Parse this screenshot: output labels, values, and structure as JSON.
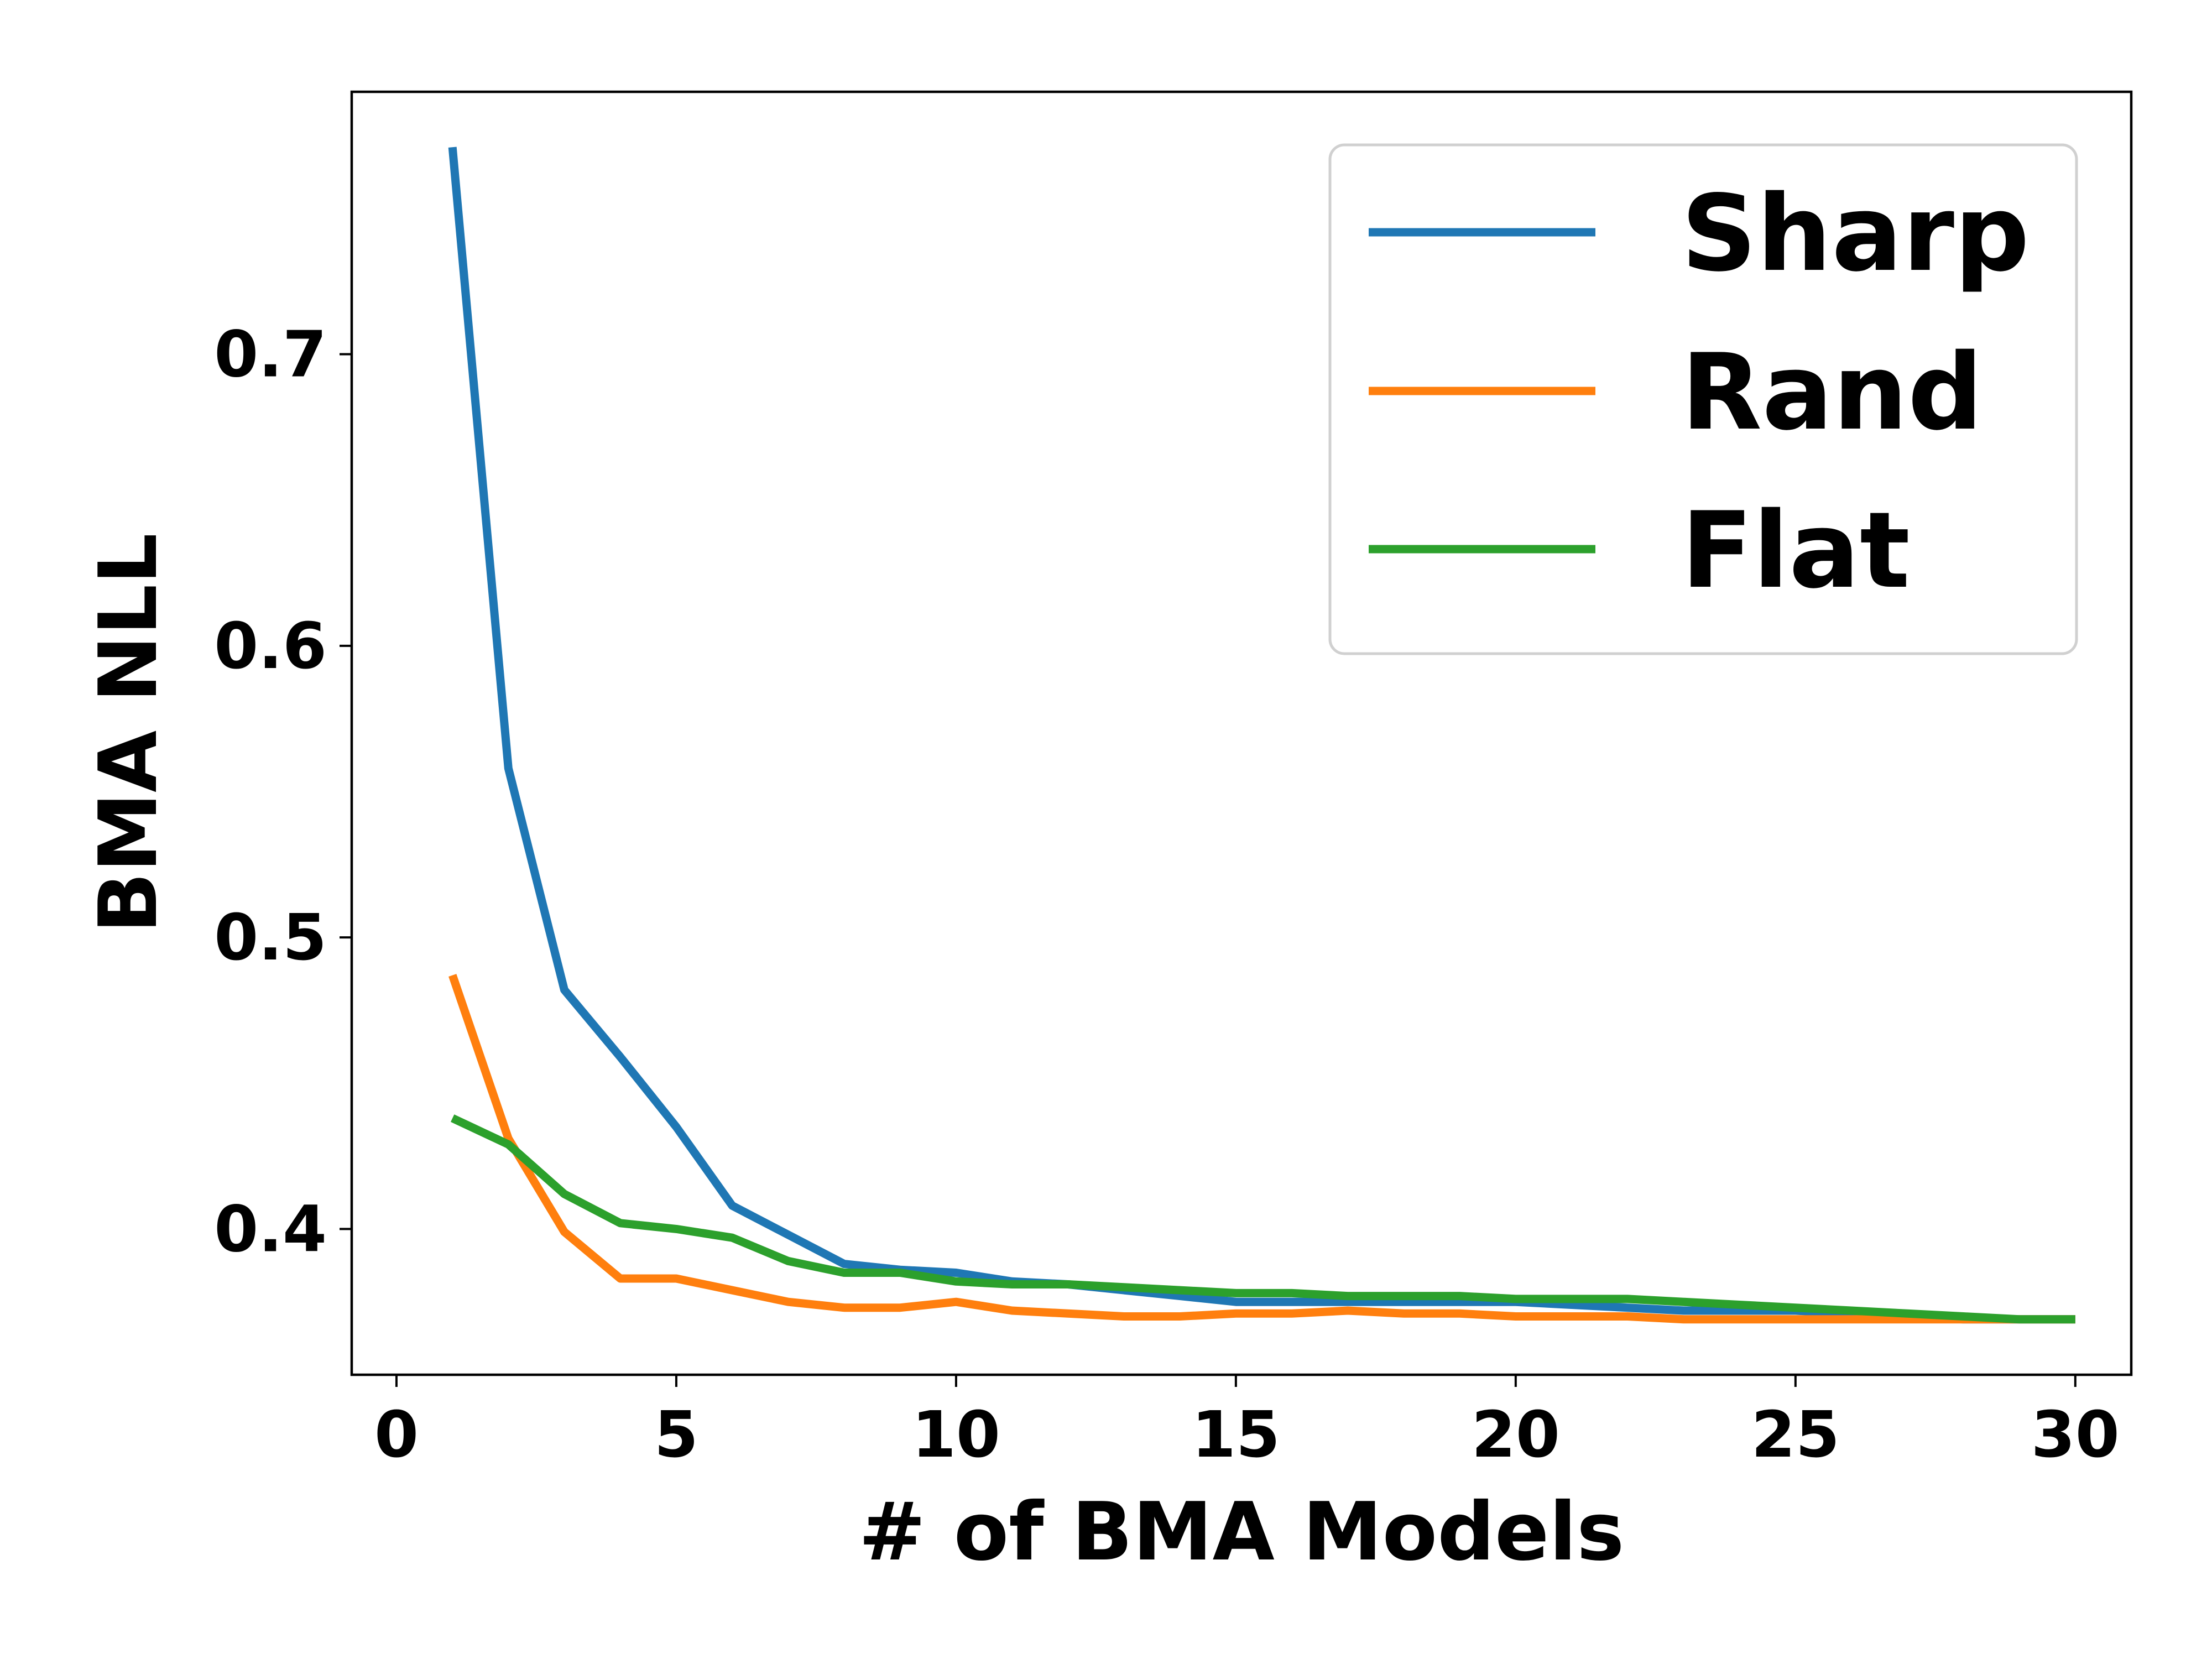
{
  "chart_data": {
    "type": "line",
    "title": "",
    "xlabel": "# of BMA Models",
    "ylabel": "BMA NLL",
    "xlim": [
      -0.8,
      31
    ],
    "ylim": [
      0.35,
      0.79
    ],
    "xticks": [
      0,
      5,
      10,
      15,
      20,
      25,
      30
    ],
    "xtick_labels": [
      "0",
      "5",
      "10",
      "15",
      "20",
      "25",
      "30"
    ],
    "yticks": [
      0.4,
      0.5,
      0.6,
      0.7
    ],
    "ytick_labels": [
      "0.4",
      "0.5",
      "0.6",
      "0.7"
    ],
    "grid": false,
    "legend_position": "top-right",
    "x": [
      1,
      2,
      3,
      4,
      5,
      6,
      7,
      8,
      9,
      10,
      11,
      12,
      13,
      14,
      15,
      16,
      17,
      18,
      19,
      20,
      21,
      22,
      23,
      24,
      25,
      26,
      27,
      28,
      29,
      30
    ],
    "series": [
      {
        "name": "Sharp",
        "color": "#1f77b4",
        "values": [
          0.771,
          0.558,
          0.482,
          0.459,
          0.435,
          0.408,
          0.398,
          0.388,
          0.386,
          0.385,
          0.382,
          0.381,
          0.379,
          0.377,
          0.375,
          0.375,
          0.375,
          0.375,
          0.375,
          0.375,
          0.374,
          0.373,
          0.372,
          0.372,
          0.372,
          0.371,
          0.37,
          0.369,
          0.369,
          0.369
        ]
      },
      {
        "name": "Rand",
        "color": "#ff7f0e",
        "values": [
          0.487,
          0.431,
          0.399,
          0.383,
          0.383,
          0.379,
          0.375,
          0.373,
          0.373,
          0.375,
          0.372,
          0.371,
          0.37,
          0.37,
          0.371,
          0.371,
          0.372,
          0.371,
          0.371,
          0.37,
          0.37,
          0.37,
          0.369,
          0.369,
          0.369,
          0.369,
          0.369,
          0.369,
          0.369,
          0.369
        ]
      },
      {
        "name": "Flat",
        "color": "#2ca02c",
        "values": [
          0.438,
          0.429,
          0.412,
          0.402,
          0.4,
          0.397,
          0.389,
          0.385,
          0.385,
          0.382,
          0.381,
          0.381,
          0.38,
          0.379,
          0.378,
          0.378,
          0.377,
          0.377,
          0.377,
          0.376,
          0.376,
          0.376,
          0.375,
          0.374,
          0.373,
          0.372,
          0.371,
          0.37,
          0.369,
          0.369
        ]
      }
    ]
  }
}
